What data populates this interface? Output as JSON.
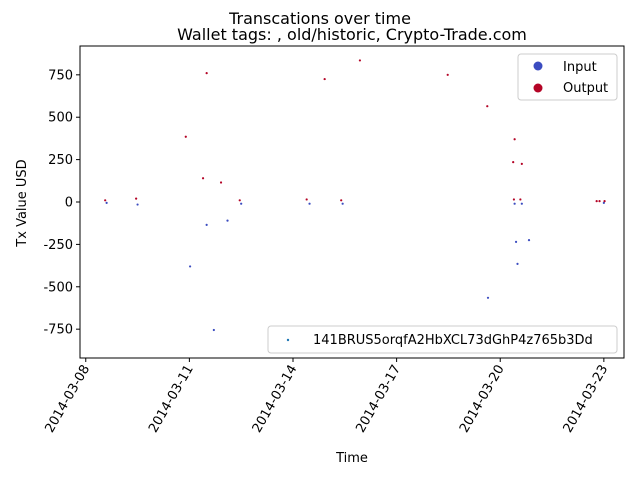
{
  "chart_data": {
    "type": "scatter",
    "title": "Transcations over time",
    "subtitle": "Wallet tags: , old/historic, Crypto-Trade.com",
    "xlabel": "Time",
    "ylabel": "Tx Value USD",
    "xlim": [
      "2014-03-07T20:00",
      "2014-03-23T14:00"
    ],
    "ylim": [
      -920,
      920
    ],
    "x_ticks": [
      "2014-03-08",
      "2014-03-11",
      "2014-03-14",
      "2014-03-17",
      "2014-03-20",
      "2014-03-23"
    ],
    "y_ticks": [
      -750,
      -500,
      -250,
      0,
      250,
      500,
      750
    ],
    "grid": false,
    "legend_top": {
      "position": "upper right",
      "entries": [
        {
          "label": "Input",
          "color": "#3b4cc0"
        },
        {
          "label": "Output",
          "color": "#b40426"
        }
      ]
    },
    "legend_bottom": {
      "position": "lower right",
      "label": "141BRUS5orqfA2HbXCL73dGhP4z765b3Dd",
      "color": "#1f77b4"
    },
    "series": [
      {
        "name": "Input",
        "color": "#3b4cc0",
        "points": [
          {
            "x": "2014-03-08T14:30",
            "y": -5
          },
          {
            "x": "2014-03-09T12:00",
            "y": -15
          },
          {
            "x": "2014-03-11T00:30",
            "y": -380
          },
          {
            "x": "2014-03-11T12:00",
            "y": -135
          },
          {
            "x": "2014-03-11T17:00",
            "y": -755
          },
          {
            "x": "2014-03-12T02:30",
            "y": -110
          },
          {
            "x": "2014-03-12T12:00",
            "y": -10
          },
          {
            "x": "2014-03-14T11:30",
            "y": -10
          },
          {
            "x": "2014-03-15T10:30",
            "y": -10
          },
          {
            "x": "2014-03-19T15:30",
            "y": -565
          },
          {
            "x": "2014-03-20T10:00",
            "y": -10
          },
          {
            "x": "2014-03-20T11:00",
            "y": -235
          },
          {
            "x": "2014-03-20T12:00",
            "y": -365
          },
          {
            "x": "2014-03-20T15:00",
            "y": -10
          },
          {
            "x": "2014-03-20T20:00",
            "y": -225
          },
          {
            "x": "2014-03-23T00:00",
            "y": -5
          }
        ]
      },
      {
        "name": "Output",
        "color": "#b40426",
        "points": [
          {
            "x": "2014-03-08T13:30",
            "y": 10
          },
          {
            "x": "2014-03-09T11:00",
            "y": 20
          },
          {
            "x": "2014-03-10T21:30",
            "y": 385
          },
          {
            "x": "2014-03-11T09:30",
            "y": 140
          },
          {
            "x": "2014-03-11T12:00",
            "y": 760
          },
          {
            "x": "2014-03-11T22:00",
            "y": 115
          },
          {
            "x": "2014-03-12T11:00",
            "y": 10
          },
          {
            "x": "2014-03-14T09:30",
            "y": 15
          },
          {
            "x": "2014-03-14T22:00",
            "y": 725
          },
          {
            "x": "2014-03-15T09:30",
            "y": 10
          },
          {
            "x": "2014-03-15T22:30",
            "y": 835
          },
          {
            "x": "2014-03-18T11:30",
            "y": 750
          },
          {
            "x": "2014-03-19T15:00",
            "y": 565
          },
          {
            "x": "2014-03-20T09:00",
            "y": 235
          },
          {
            "x": "2014-03-20T09:30",
            "y": 15
          },
          {
            "x": "2014-03-20T10:00",
            "y": 370
          },
          {
            "x": "2014-03-20T14:00",
            "y": 15
          },
          {
            "x": "2014-03-20T15:00",
            "y": 225
          },
          {
            "x": "2014-03-22T19:00",
            "y": 5
          },
          {
            "x": "2014-03-22T21:00",
            "y": 5
          },
          {
            "x": "2014-03-23T00:30",
            "y": 5
          }
        ]
      }
    ]
  }
}
